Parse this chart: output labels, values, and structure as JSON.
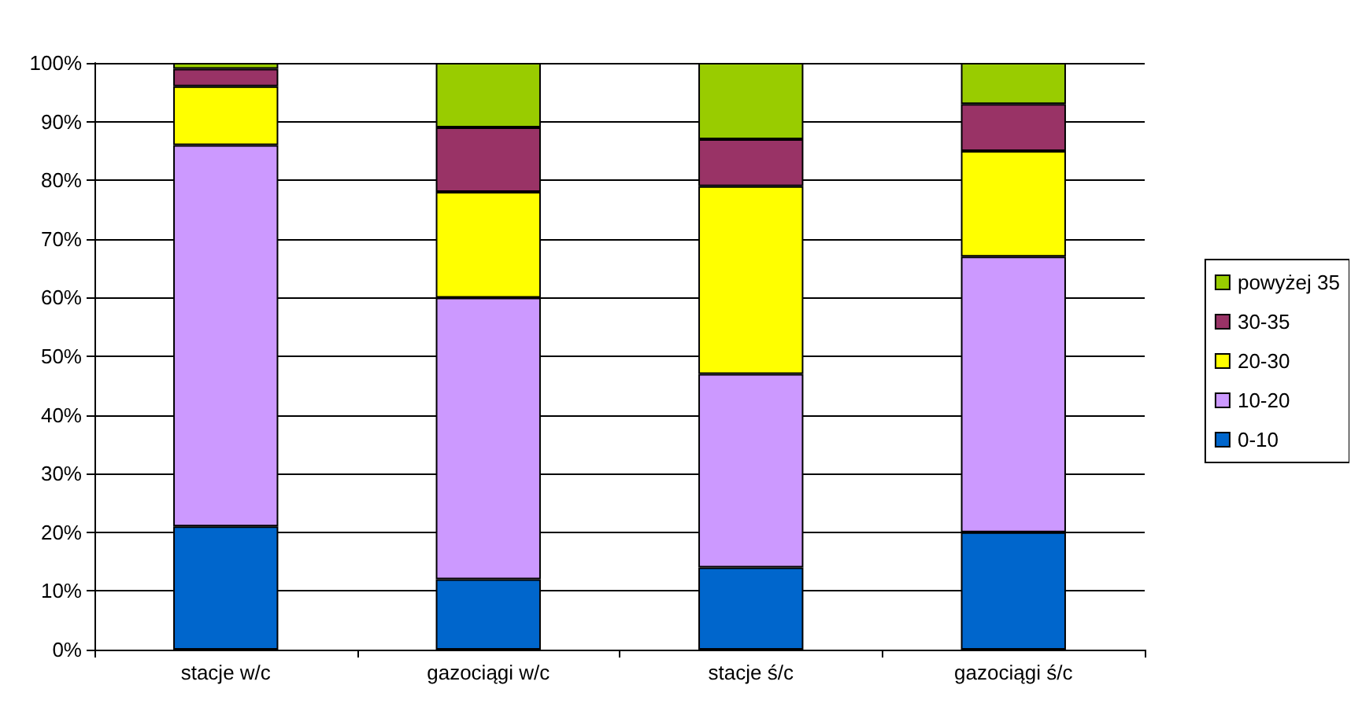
{
  "chart_data": {
    "type": "bar",
    "stacked": true,
    "categories": [
      "stacje w/c",
      "gazociągi w/c",
      "stacje ś/c",
      "gazociągi ś/c"
    ],
    "series": [
      {
        "name": "0-10",
        "color": "#0066cc",
        "values": [
          21,
          12,
          14,
          20
        ]
      },
      {
        "name": "10-20",
        "color": "#cc99ff",
        "values": [
          65,
          48,
          33,
          47
        ]
      },
      {
        "name": "20-30",
        "color": "#ffff00",
        "values": [
          10,
          18,
          32,
          18
        ]
      },
      {
        "name": "30-35",
        "color": "#993366",
        "values": [
          3,
          11,
          8,
          8
        ]
      },
      {
        "name": "powyżej 35",
        "color": "#99cc00",
        "values": [
          1,
          11,
          13,
          7
        ]
      }
    ],
    "ylim": [
      0,
      100
    ],
    "yticks": [
      {
        "value": 0,
        "label": "0%"
      },
      {
        "value": 10,
        "label": "10%"
      },
      {
        "value": 20,
        "label": "20%"
      },
      {
        "value": 30,
        "label": "30%"
      },
      {
        "value": 40,
        "label": "40%"
      },
      {
        "value": 50,
        "label": "50%"
      },
      {
        "value": 60,
        "label": "60%"
      },
      {
        "value": 70,
        "label": "70%"
      },
      {
        "value": 80,
        "label": "80%"
      },
      {
        "value": 90,
        "label": "90%"
      },
      {
        "value": 100,
        "label": "100%"
      }
    ],
    "grid": "y",
    "legend": "right"
  }
}
